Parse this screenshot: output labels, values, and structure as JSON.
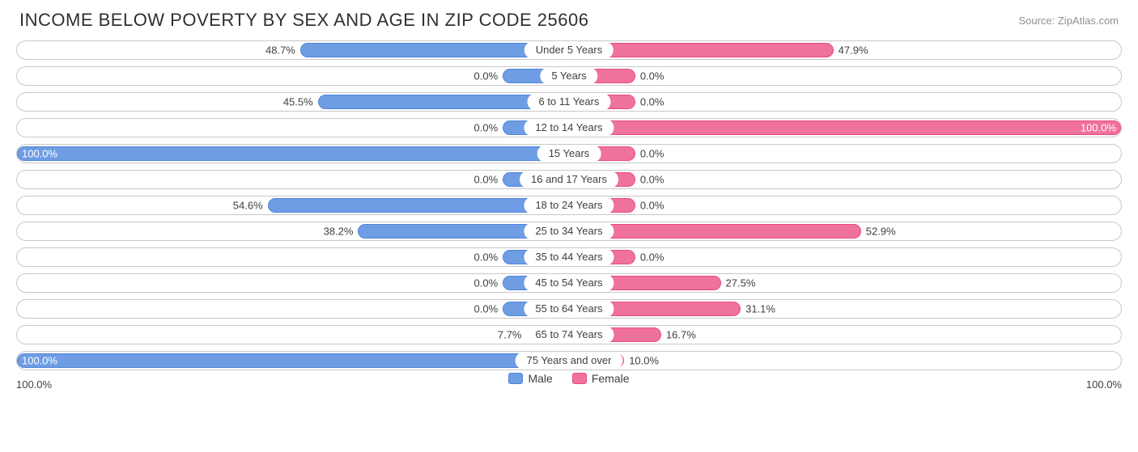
{
  "title": "INCOME BELOW POVERTY BY SEX AND AGE IN ZIP CODE 25606",
  "source": "Source: ZipAtlas.com",
  "colors": {
    "male_fill": "#6e9de4",
    "male_border": "#4f85da",
    "female_fill": "#ef719e",
    "female_border": "#e94b83",
    "track_border": "#c8c8c8",
    "text": "#404040"
  },
  "axis": {
    "left": "100.0%",
    "right": "100.0%"
  },
  "legend": {
    "male": "Male",
    "female": "Female"
  },
  "default_bar_pct": 12.0,
  "rows": [
    {
      "label": "Under 5 Years",
      "male": 48.7,
      "female": 47.9
    },
    {
      "label": "5 Years",
      "male": 0.0,
      "female": 0.0
    },
    {
      "label": "6 to 11 Years",
      "male": 45.5,
      "female": 0.0
    },
    {
      "label": "12 to 14 Years",
      "male": 0.0,
      "female": 100.0
    },
    {
      "label": "15 Years",
      "male": 100.0,
      "female": 0.0
    },
    {
      "label": "16 and 17 Years",
      "male": 0.0,
      "female": 0.0
    },
    {
      "label": "18 to 24 Years",
      "male": 54.6,
      "female": 0.0
    },
    {
      "label": "25 to 34 Years",
      "male": 38.2,
      "female": 52.9
    },
    {
      "label": "35 to 44 Years",
      "male": 0.0,
      "female": 0.0
    },
    {
      "label": "45 to 54 Years",
      "male": 0.0,
      "female": 27.5
    },
    {
      "label": "55 to 64 Years",
      "male": 0.0,
      "female": 31.1
    },
    {
      "label": "65 to 74 Years",
      "male": 7.7,
      "female": 16.7
    },
    {
      "label": "75 Years and over",
      "male": 100.0,
      "female": 10.0
    }
  ]
}
